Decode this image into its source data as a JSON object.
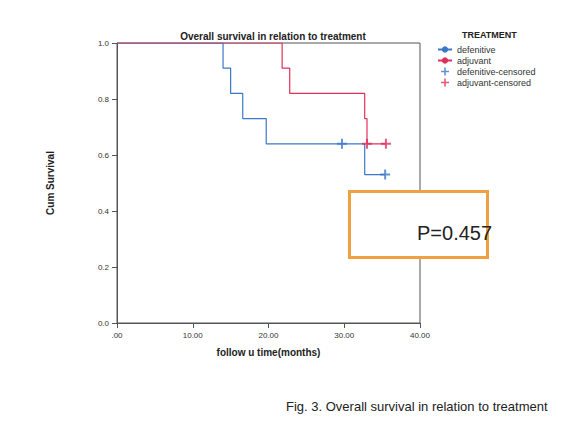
{
  "chart_data": {
    "type": "line",
    "title": "Overall survival in relation to treatment",
    "x_label": "follow u time(months)",
    "y_label": "Cum Survival",
    "legend_title": "TREATMENT",
    "annotation": "P=0.457",
    "caption": "Fig. 3. Overall survival in relation to treatment",
    "xlim": [
      0,
      40
    ],
    "xticks": [
      {
        "value": 0,
        "label": ".00"
      },
      {
        "value": 10,
        "label": "10.00"
      },
      {
        "value": 20,
        "label": "20.00"
      },
      {
        "value": 30,
        "label": "30.00"
      },
      {
        "value": 40,
        "label": "40.00"
      }
    ],
    "ylim": [
      0,
      1
    ],
    "yticks": [
      {
        "value": 0,
        "label": "0.0"
      },
      0.2,
      0.4,
      0.6,
      0.8,
      {
        "value": 1,
        "label": "1.0"
      }
    ],
    "grid": false,
    "legend": "right",
    "series": [
      {
        "name": "defenitive",
        "type": "line",
        "line_style": "step",
        "color": "#3c78c8",
        "x": [
          0,
          14,
          15,
          16.6,
          19.7,
          32.7,
          35.4
        ],
        "values": [
          1,
          0.91,
          0.82,
          0.73,
          0.64,
          0.53,
          0.53
        ]
      },
      {
        "name": "adjuvant",
        "type": "line",
        "line_style": "step",
        "color": "#e0305a",
        "x": [
          0,
          21.8,
          22.8,
          32.7,
          33,
          35.5
        ],
        "values": [
          1,
          0.91,
          0.82,
          0.73,
          0.64,
          0.64
        ]
      },
      {
        "name": "defenitive-censored",
        "type": "scatter",
        "marker": "plus",
        "color": "#3c78c8",
        "x": [
          29.7,
          35.4
        ],
        "values": [
          0.64,
          0.53
        ]
      },
      {
        "name": "adjuvant-censored",
        "type": "scatter",
        "marker": "plus",
        "color": "#e0305a",
        "x": [
          33,
          35.5
        ],
        "values": [
          0.64,
          0.64
        ]
      }
    ]
  }
}
